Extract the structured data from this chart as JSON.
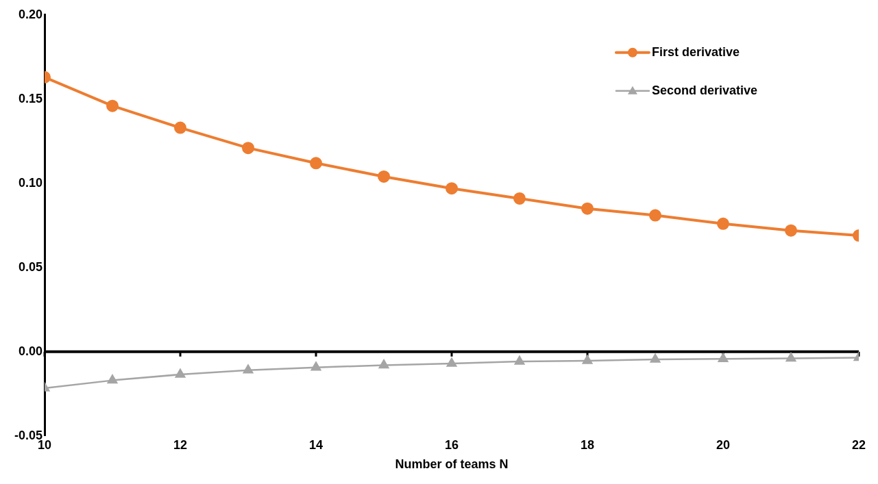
{
  "chart_data": {
    "type": "line",
    "xlabel": "Number of teams N",
    "x": [
      10,
      11,
      12,
      13,
      14,
      15,
      16,
      17,
      18,
      19,
      20,
      21,
      22
    ],
    "series": [
      {
        "name": "First derivative",
        "color": "#ed7d31",
        "marker": "circle",
        "values": [
          0.163,
          0.146,
          0.133,
          0.121,
          0.112,
          0.104,
          0.097,
          0.091,
          0.085,
          0.081,
          0.076,
          0.072,
          0.069
        ]
      },
      {
        "name": "Second derivative",
        "color": "#a5a5a5",
        "marker": "triangle",
        "values": [
          -0.0216,
          -0.017,
          -0.0135,
          -0.011,
          -0.0093,
          -0.008,
          -0.007,
          -0.0058,
          -0.0054,
          -0.0046,
          -0.0042,
          -0.0039,
          -0.0035
        ]
      }
    ],
    "xlim": [
      10,
      22
    ],
    "xticks": [
      10,
      12,
      14,
      16,
      18,
      20,
      22
    ],
    "ylim": [
      -0.05,
      0.2
    ],
    "yticks": [
      -0.05,
      {
        "value": 0,
        "label": "0.00"
      },
      0.05,
      {
        "value": 0.1,
        "label": "0.10"
      },
      0.15,
      {
        "value": 0.2,
        "label": "0.20"
      }
    ],
    "ref_lines": [
      {
        "axis": "y",
        "value": 0,
        "color": "#000000"
      }
    ],
    "grid": false,
    "legend": "top right"
  }
}
